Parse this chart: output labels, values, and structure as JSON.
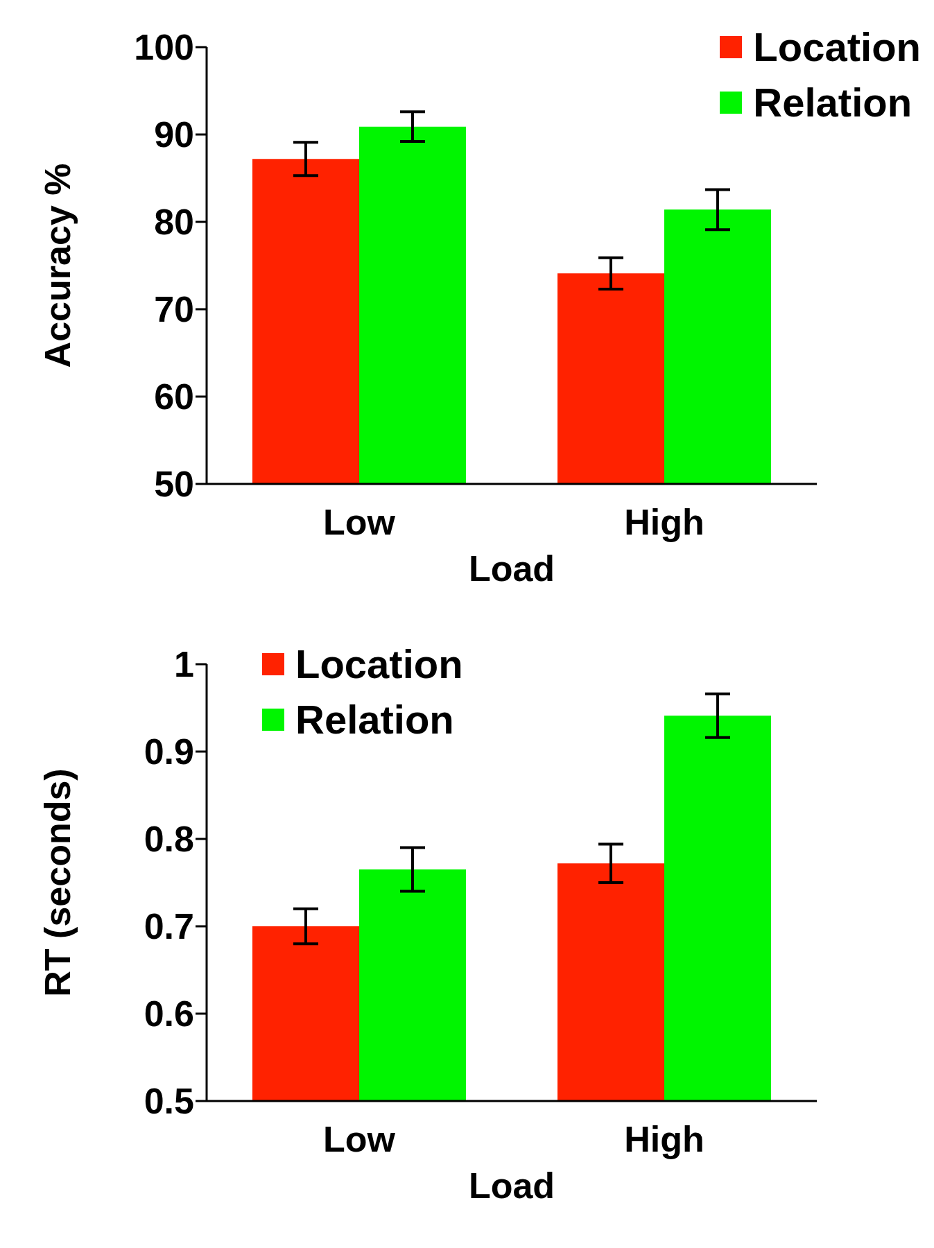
{
  "chart_data": [
    {
      "type": "bar",
      "categories": [
        "Low",
        "High"
      ],
      "xlabel": "Load",
      "ylabel": "Accuracy %",
      "ylim": [
        50,
        100
      ],
      "yticks": [
        50,
        60,
        70,
        80,
        90,
        100
      ],
      "legend": "top right",
      "grid": false,
      "series": [
        {
          "name": "Location",
          "color": "#ff2200",
          "values": [
            87.2,
            74.1
          ],
          "errors": [
            1.9,
            1.8
          ]
        },
        {
          "name": "Relation",
          "color": "#00f500",
          "values": [
            90.9,
            81.4
          ],
          "errors": [
            1.7,
            2.3
          ]
        }
      ]
    },
    {
      "type": "bar",
      "categories": [
        "Low",
        "High"
      ],
      "xlabel": "Load",
      "ylabel": "RT (seconds)",
      "ylim": [
        0.5,
        1
      ],
      "yticks": [
        {
          "value": 0.5,
          "label": "0.5"
        },
        {
          "value": 0.6,
          "label": "0.6"
        },
        {
          "value": 0.7,
          "label": "0.7"
        },
        {
          "value": 0.8,
          "label": "0.8"
        },
        {
          "value": 0.9,
          "label": "0.9"
        },
        {
          "value": 1,
          "label": "1"
        }
      ],
      "legend": "top left",
      "grid": false,
      "series": [
        {
          "name": "Location",
          "color": "#ff2200",
          "values": [
            0.7,
            0.772
          ],
          "errors": [
            0.02,
            0.022
          ]
        },
        {
          "name": "Relation",
          "color": "#00f500",
          "values": [
            0.765,
            0.941
          ],
          "errors": [
            0.025,
            0.025
          ]
        }
      ]
    }
  ]
}
